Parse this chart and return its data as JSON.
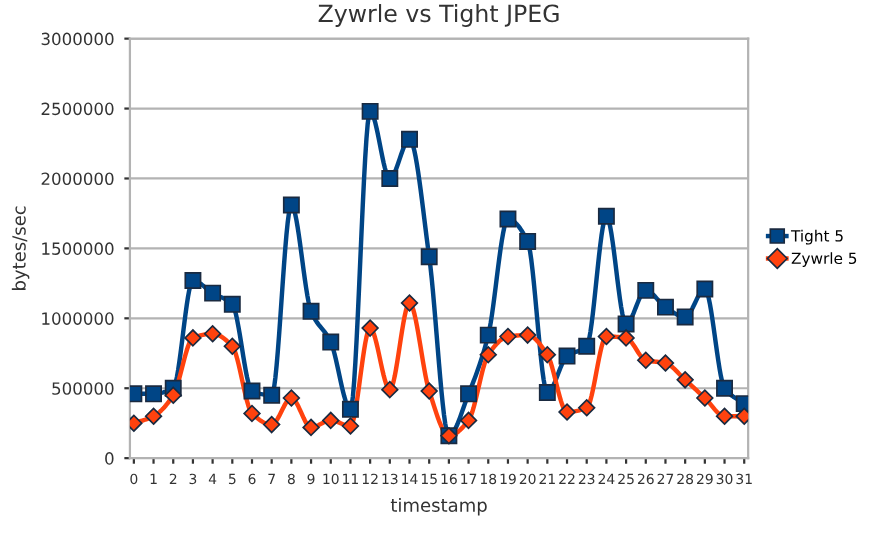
{
  "chart_data": {
    "type": "line",
    "title": "Zywrle vs Tight JPEG",
    "xlabel": "timestamp",
    "ylabel": "bytes/sec",
    "categories": [
      "0",
      "1",
      "2",
      "3",
      "4",
      "5",
      "6",
      "7",
      "8",
      "9",
      "10",
      "11",
      "12",
      "13",
      "14",
      "15",
      "16",
      "17",
      "18",
      "19",
      "20",
      "21",
      "22",
      "23",
      "24",
      "25",
      "26",
      "27",
      "28",
      "29",
      "30",
      "31"
    ],
    "series": [
      {
        "name": "Tight 5",
        "color": "#004586",
        "marker": "square",
        "values": [
          460000,
          460000,
          500000,
          1270000,
          1180000,
          1100000,
          480000,
          450000,
          1810000,
          1050000,
          830000,
          350000,
          2480000,
          2000000,
          2280000,
          1440000,
          160000,
          460000,
          880000,
          1710000,
          1550000,
          470000,
          730000,
          800000,
          1730000,
          960000,
          1200000,
          1080000,
          1010000,
          1210000,
          500000,
          390000
        ]
      },
      {
        "name": "Zywrle 5",
        "color": "#ff420e",
        "marker": "diamond",
        "values": [
          250000,
          300000,
          450000,
          860000,
          890000,
          800000,
          320000,
          240000,
          430000,
          220000,
          270000,
          230000,
          930000,
          490000,
          1110000,
          480000,
          160000,
          270000,
          740000,
          870000,
          880000,
          740000,
          330000,
          360000,
          870000,
          860000,
          700000,
          680000,
          560000,
          430000,
          300000,
          300000
        ]
      }
    ],
    "ylim": [
      0,
      3000000
    ],
    "yticks": [
      0,
      500000,
      1000000,
      1500000,
      2000000,
      2500000,
      3000000
    ],
    "grid": "y",
    "legend": "right",
    "line_style": "solid"
  }
}
